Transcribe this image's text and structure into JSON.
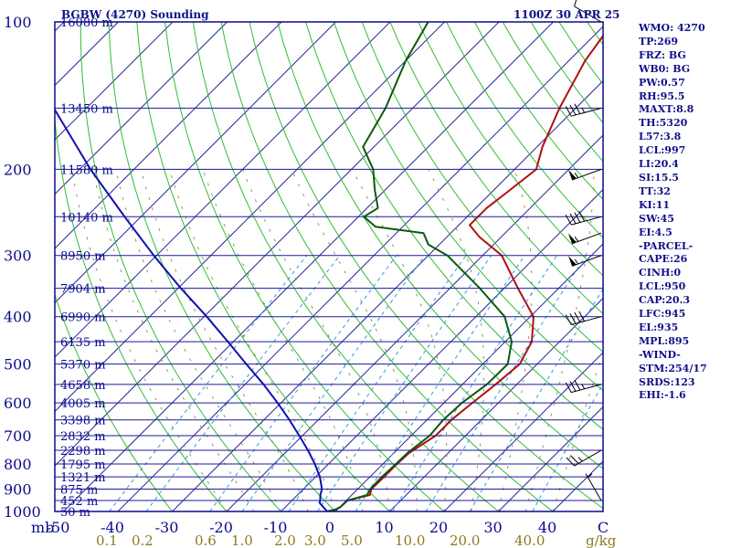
{
  "header": {
    "station_title": "BGBW (4270) Sounding",
    "time_title": "1100Z 30 APR 25"
  },
  "indices": [
    "WMO: 4270",
    "TP:269",
    "FRZ: BG",
    "WB0: BG",
    "PW:0.57",
    "RH:95.5",
    "MAXT:8.8",
    "TH:5320",
    "L57:3.8",
    "LCL:997",
    "LI:20.4",
    "SI:15.5",
    "TT:32",
    "KI:11",
    "SW:45",
    "EI:4.5",
    "-PARCEL-",
    "CAPE:26",
    "CINH:0",
    "LCL:950",
    "CAP:20.3",
    "LFC:945",
    "EL:935",
    "MPL:895",
    "-WIND-",
    "STM:254/17",
    "SRDS:123",
    "EHI:-1.6"
  ],
  "colors": {
    "frame": "#0a0a8c",
    "isobar": "#1a1a9a",
    "isotherm": "#2a2a96",
    "dry_adiabat": "#33bb33",
    "mixing_ratio": "#3399dd",
    "moist_adiabat": "#7a7a3a",
    "temperature": "#b01010",
    "dewpoint": "#0a5a0a",
    "parcel": "#1010b0",
    "wind_barb": "#000000"
  },
  "chart_data": {
    "type": "skew-t log-p",
    "pressure_unit": "mb",
    "pressure_range": [
      1000,
      100
    ],
    "temperature_range": [
      -50,
      50
    ],
    "pressure_ticks": [
      "100",
      "200",
      "300",
      "400",
      "500",
      "600",
      "700",
      "800",
      "900",
      "1000"
    ],
    "pressure_tick_values": [
      100,
      200,
      300,
      400,
      500,
      600,
      700,
      800,
      900,
      1000
    ],
    "temperature_ticks": [
      "-50",
      "-40",
      "-30",
      "-20",
      "-10",
      "0",
      "10",
      "20",
      "30",
      "40",
      "C"
    ],
    "temperature_tick_values": [
      -50,
      -40,
      -30,
      -20,
      -10,
      0,
      10,
      20,
      30,
      40
    ],
    "temperature_unit_label": "C",
    "pressure_axis_unit_label": "mb",
    "mixing_ratio_ticks": [
      "0.1",
      "0.2",
      "0.6",
      "1.0",
      "2.0",
      "3.0",
      "5.0",
      "10.0",
      "20.0",
      "40.0"
    ],
    "mixing_ratio_unit_label": "g/kg",
    "height_levels": [
      {
        "p": 100,
        "label": "16080 m"
      },
      {
        "p": 150,
        "label": "13450 m"
      },
      {
        "p": 200,
        "label": "11580 m"
      },
      {
        "p": 250,
        "label": "10140 m"
      },
      {
        "p": 300,
        "label": "8950 m"
      },
      {
        "p": 350,
        "label": "7904 m"
      },
      {
        "p": 400,
        "label": "6990 m"
      },
      {
        "p": 450,
        "label": "6135 m"
      },
      {
        "p": 500,
        "label": "5370 m"
      },
      {
        "p": 550,
        "label": "4658 m"
      },
      {
        "p": 600,
        "label": "4005 m"
      },
      {
        "p": 650,
        "label": "3398 m"
      },
      {
        "p": 700,
        "label": "2832 m"
      },
      {
        "p": 750,
        "label": "2298 m"
      },
      {
        "p": 800,
        "label": "1795 m"
      },
      {
        "p": 850,
        "label": "1321 m"
      },
      {
        "p": 900,
        "label": "875 m"
      },
      {
        "p": 950,
        "label": "452 m"
      },
      {
        "p": 1000,
        "label": "50 m"
      }
    ],
    "series": [
      {
        "key": "temperature",
        "points": [
          [
            1000,
            -1.5
          ],
          [
            990,
            -0.3
          ],
          [
            980,
            0.1
          ],
          [
            950,
            0.2
          ],
          [
            925,
            3.3
          ],
          [
            900,
            2.5
          ],
          [
            850,
            2.6
          ],
          [
            800,
            2.6
          ],
          [
            760,
            2.8
          ],
          [
            700,
            4.5
          ],
          [
            650,
            4.5
          ],
          [
            600,
            5.2
          ],
          [
            550,
            6.1
          ],
          [
            500,
            6.8
          ],
          [
            450,
            4.9
          ],
          [
            400,
            0.6
          ],
          [
            350,
            -7.5
          ],
          [
            300,
            -16.5
          ],
          [
            275,
            -24
          ],
          [
            260,
            -28
          ],
          [
            250,
            -28
          ],
          [
            240,
            -28
          ],
          [
            220,
            -27
          ],
          [
            200,
            -26
          ],
          [
            180,
            -29
          ],
          [
            150,
            -33
          ],
          [
            120,
            -37
          ],
          [
            100,
            -39
          ]
        ]
      },
      {
        "key": "dewpoint",
        "points": [
          [
            1000,
            -1.5
          ],
          [
            990,
            -0.3
          ],
          [
            980,
            0.1
          ],
          [
            950,
            0.2
          ],
          [
            925,
            2.8
          ],
          [
            900,
            2.3
          ],
          [
            850,
            2.2
          ],
          [
            800,
            2.4
          ],
          [
            760,
            2.5
          ],
          [
            700,
            3.4
          ],
          [
            650,
            3.0
          ],
          [
            600,
            3.3
          ],
          [
            550,
            4.5
          ],
          [
            500,
            4.6
          ],
          [
            450,
            1.2
          ],
          [
            400,
            -4.7
          ],
          [
            350,
            -14.5
          ],
          [
            300,
            -26.5
          ],
          [
            285,
            -32
          ],
          [
            270,
            -35
          ],
          [
            262,
            -45
          ],
          [
            250,
            -49
          ],
          [
            240,
            -48
          ],
          [
            220,
            -52
          ],
          [
            200,
            -56
          ],
          [
            180,
            -62
          ],
          [
            150,
            -65
          ],
          [
            120,
            -70
          ],
          [
            100,
            -73
          ]
        ]
      },
      {
        "key": "parcel",
        "points": [
          [
            1000,
            -1.5
          ],
          [
            960,
            -4.5
          ],
          [
            950,
            -4.8
          ],
          [
            925,
            -5.8
          ],
          [
            900,
            -6.6
          ],
          [
            850,
            -9.2
          ],
          [
            800,
            -12.5
          ],
          [
            750,
            -16.3
          ],
          [
            700,
            -20.6
          ],
          [
            650,
            -25.3
          ],
          [
            600,
            -30.6
          ],
          [
            550,
            -36.6
          ],
          [
            500,
            -43.5
          ],
          [
            450,
            -51
          ],
          [
            400,
            -59.5
          ],
          [
            350,
            -69.5
          ],
          [
            300,
            -80.5
          ],
          [
            250,
            -93
          ],
          [
            200,
            -108
          ],
          [
            150,
            -126
          ],
          [
            120,
            -140
          ],
          [
            100,
            -152
          ]
        ]
      }
    ],
    "wind_barbs": [
      {
        "p": 100,
        "dir": 300,
        "speed_kt": 10
      },
      {
        "p": 150,
        "dir": 255,
        "speed_kt": 35
      },
      {
        "p": 200,
        "dir": 250,
        "speed_kt": 55
      },
      {
        "p": 250,
        "dir": 255,
        "speed_kt": 40
      },
      {
        "p": 270,
        "dir": 250,
        "speed_kt": 55
      },
      {
        "p": 300,
        "dir": 250,
        "speed_kt": 55
      },
      {
        "p": 400,
        "dir": 255,
        "speed_kt": 40
      },
      {
        "p": 550,
        "dir": 255,
        "speed_kt": 35
      },
      {
        "p": 750,
        "dir": 240,
        "speed_kt": 25
      },
      {
        "p": 950,
        "dir": 330,
        "speed_kt": 5
      }
    ]
  }
}
